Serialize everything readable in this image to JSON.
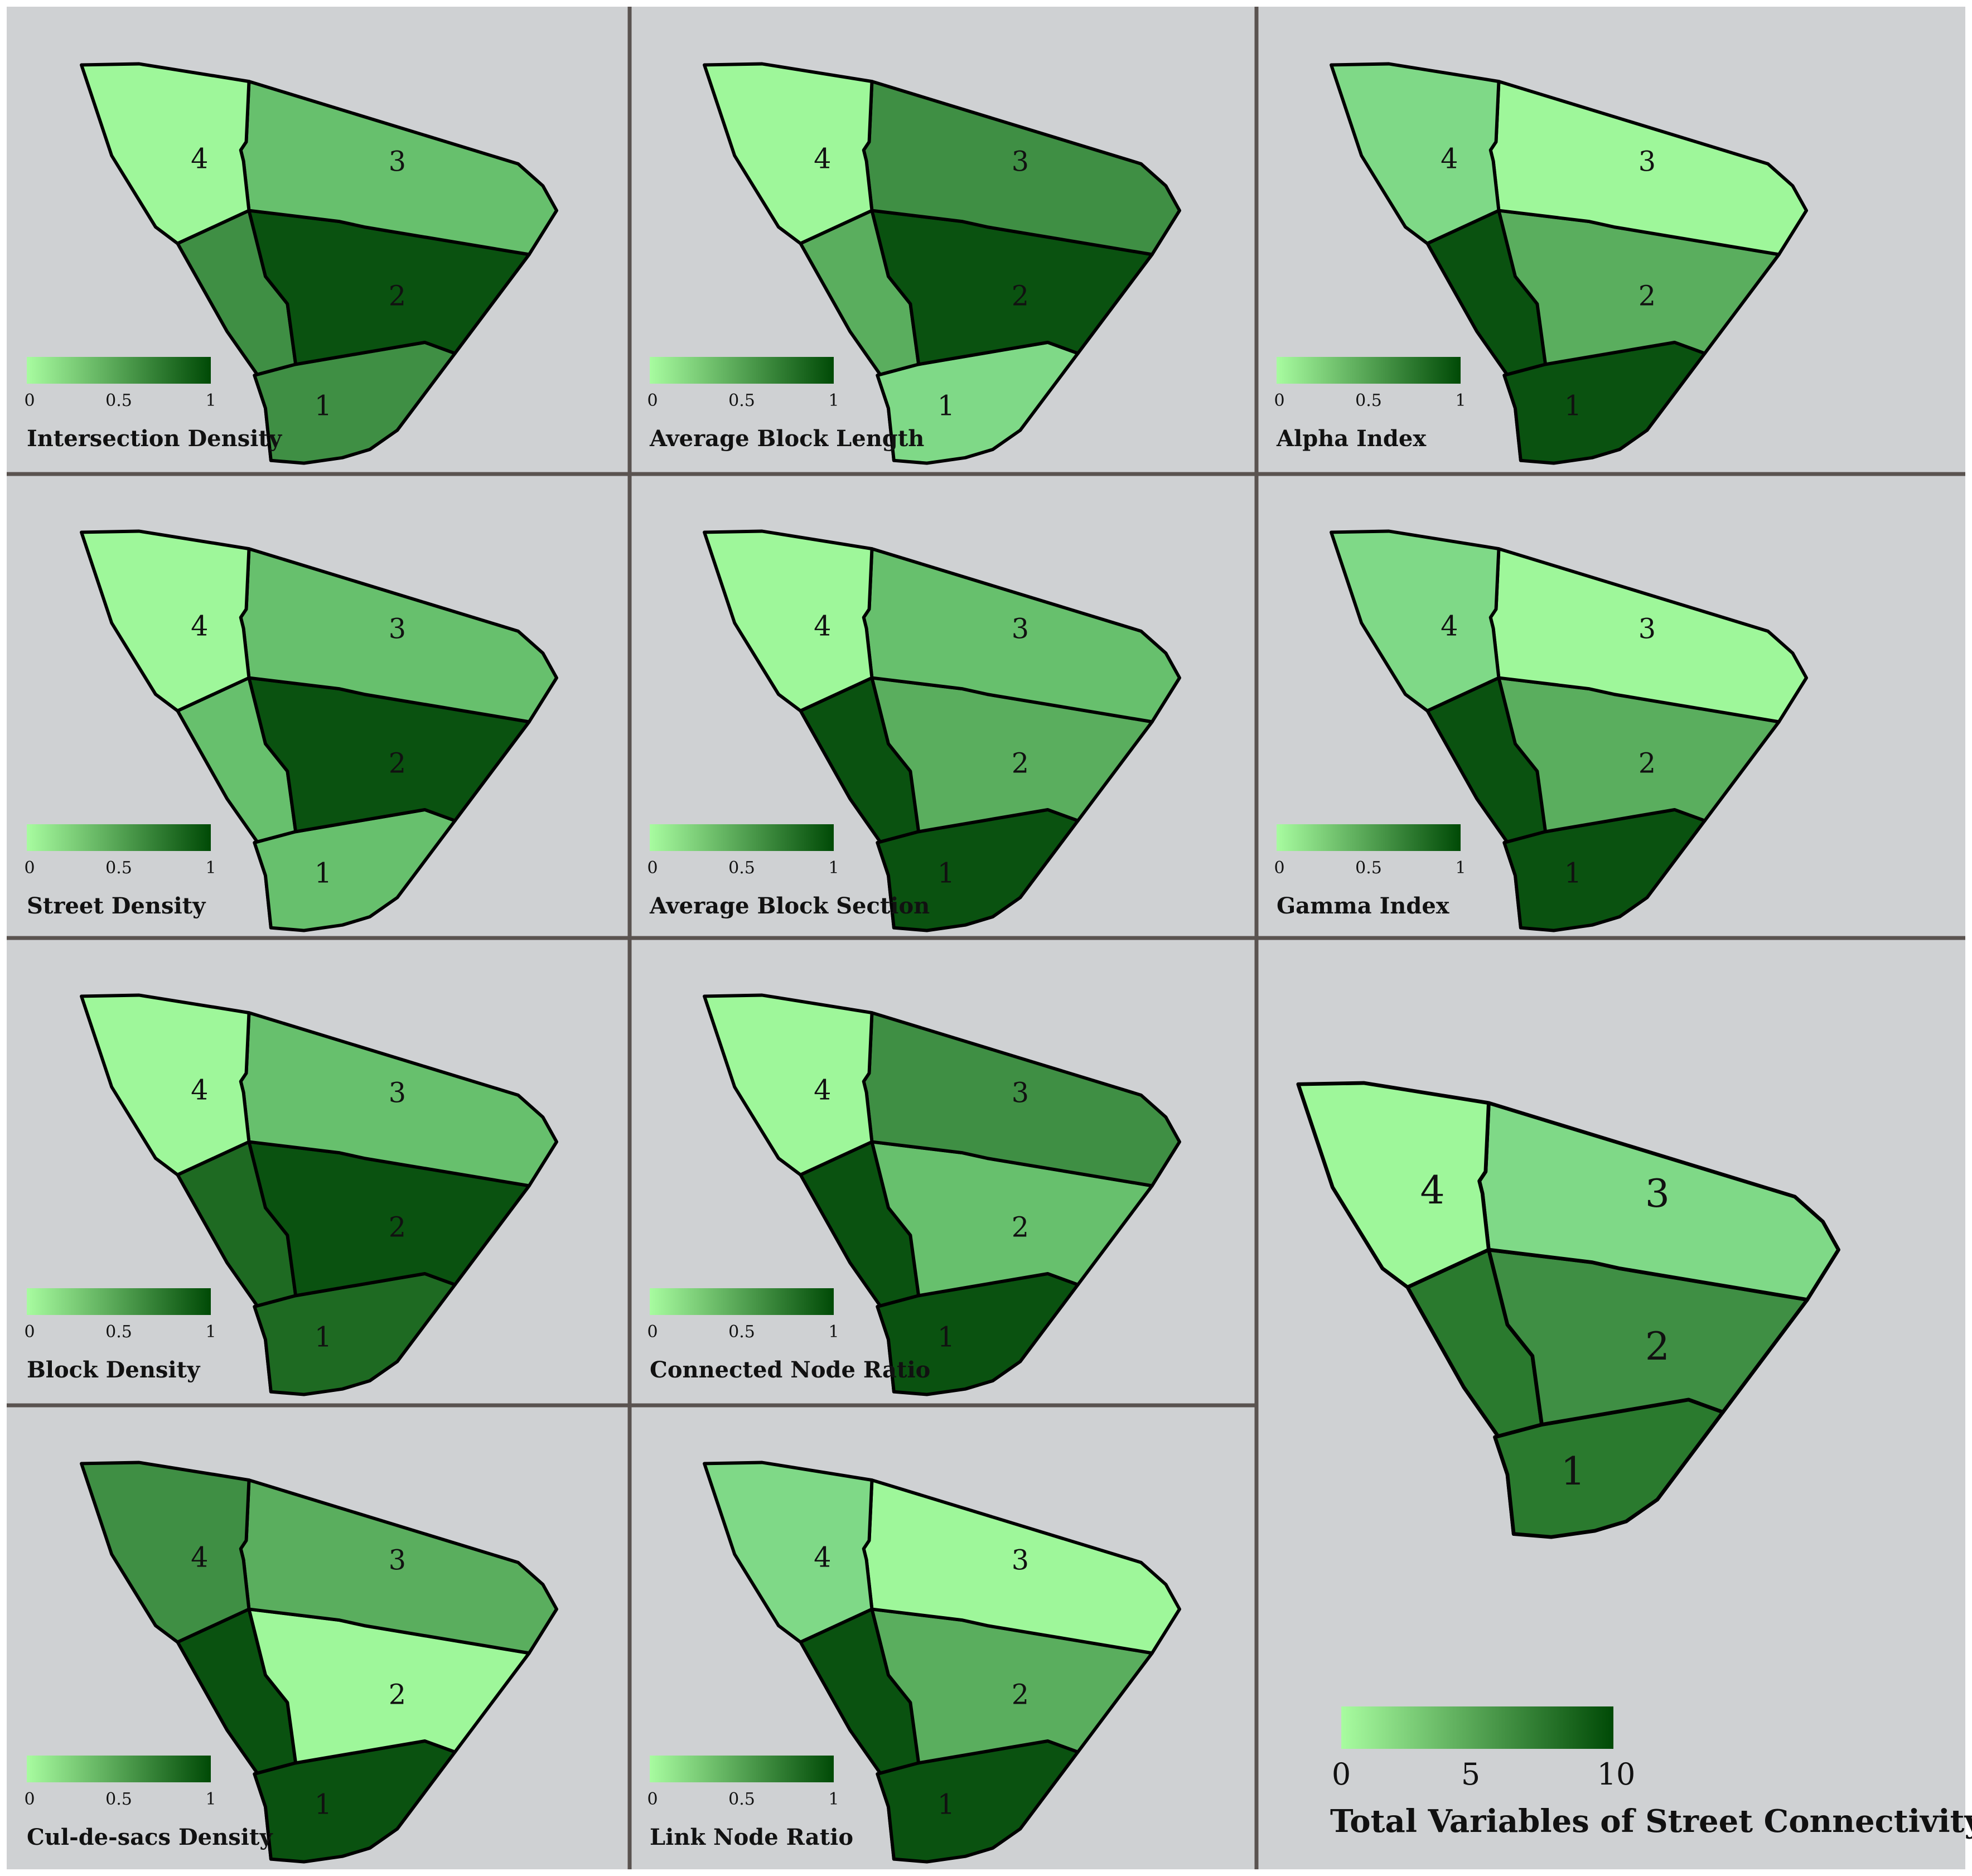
{
  "colors": {
    "panel_background": "#cfd1d3",
    "divider": "#5a5350",
    "legend_low": "#a8fca0",
    "legend_high": "#004a06",
    "shade_scale": [
      "#9ef79a",
      "#7fd987",
      "#67c06d",
      "#5aae5e",
      "#3f8f44",
      "#2a7a2e",
      "#1e6a22",
      "#0a5210"
    ]
  },
  "small_legend": {
    "ticks": [
      "0",
      "0.5",
      "1"
    ]
  },
  "panels": [
    {
      "title": "Intersection Density",
      "zones": [
        {
          "label": "1",
          "color": "#3f8f44"
        },
        {
          "label": "2",
          "color": "#0a5210"
        },
        {
          "label": "3",
          "color": "#67c06d"
        },
        {
          "label": "4",
          "color": "#9ef79a"
        }
      ],
      "extra_zone_color": "#3f8f44"
    },
    {
      "title": "Average Block Length",
      "zones": [
        {
          "label": "1",
          "color": "#7fd987"
        },
        {
          "label": "2",
          "color": "#0a5210"
        },
        {
          "label": "3",
          "color": "#3f8f44"
        },
        {
          "label": "4",
          "color": "#9ef79a"
        }
      ],
      "extra_zone_color": "#5aae5e"
    },
    {
      "title": "Alpha Index",
      "zones": [
        {
          "label": "1",
          "color": "#0a5210"
        },
        {
          "label": "2",
          "color": "#5aae5e"
        },
        {
          "label": "3",
          "color": "#9ef79a"
        },
        {
          "label": "4",
          "color": "#7fd987"
        }
      ],
      "extra_zone_color": "#0a5210"
    },
    {
      "title": "Street Density",
      "zones": [
        {
          "label": "1",
          "color": "#67c06d"
        },
        {
          "label": "2",
          "color": "#0a5210"
        },
        {
          "label": "3",
          "color": "#67c06d"
        },
        {
          "label": "4",
          "color": "#9ef79a"
        }
      ],
      "extra_zone_color": "#67c06d"
    },
    {
      "title": "Average Block Section",
      "zones": [
        {
          "label": "1",
          "color": "#0a5210"
        },
        {
          "label": "2",
          "color": "#5aae5e"
        },
        {
          "label": "3",
          "color": "#67c06d"
        },
        {
          "label": "4",
          "color": "#9ef79a"
        }
      ],
      "extra_zone_color": "#0a5210"
    },
    {
      "title": "Gamma Index",
      "zones": [
        {
          "label": "1",
          "color": "#0a5210"
        },
        {
          "label": "2",
          "color": "#5aae5e"
        },
        {
          "label": "3",
          "color": "#9ef79a"
        },
        {
          "label": "4",
          "color": "#7fd987"
        }
      ],
      "extra_zone_color": "#0a5210"
    },
    {
      "title": "Block Density",
      "zones": [
        {
          "label": "1",
          "color": "#1e6a22"
        },
        {
          "label": "2",
          "color": "#0a5210"
        },
        {
          "label": "3",
          "color": "#67c06d"
        },
        {
          "label": "4",
          "color": "#9ef79a"
        }
      ],
      "extra_zone_color": "#1e6a22"
    },
    {
      "title": "Connected Node Ratio",
      "zones": [
        {
          "label": "1",
          "color": "#0a5210"
        },
        {
          "label": "2",
          "color": "#67c06d"
        },
        {
          "label": "3",
          "color": "#3f8f44"
        },
        {
          "label": "4",
          "color": "#9ef79a"
        }
      ],
      "extra_zone_color": "#0a5210"
    },
    {
      "title": "Cul-de-sacs Density",
      "zones": [
        {
          "label": "1",
          "color": "#0a5210"
        },
        {
          "label": "2",
          "color": "#9ef79a"
        },
        {
          "label": "3",
          "color": "#5aae5e"
        },
        {
          "label": "4",
          "color": "#3f8f44"
        }
      ],
      "extra_zone_color": "#0a5210"
    },
    {
      "title": "Link Node Ratio",
      "zones": [
        {
          "label": "1",
          "color": "#0a5210"
        },
        {
          "label": "2",
          "color": "#5aae5e"
        },
        {
          "label": "3",
          "color": "#9ef79a"
        },
        {
          "label": "4",
          "color": "#7fd987"
        }
      ],
      "extra_zone_color": "#0a5210"
    }
  ],
  "total_panel": {
    "title": "Total Variables of Street Connectivity",
    "legend_ticks": [
      "0",
      "5",
      "10"
    ],
    "zones": [
      {
        "label": "1",
        "color": "#2a7a2e"
      },
      {
        "label": "2",
        "color": "#3f8f44"
      },
      {
        "label": "3",
        "color": "#7fd987"
      },
      {
        "label": "4",
        "color": "#9ef79a"
      }
    ],
    "extra_zone_color": "#2a7a2e"
  }
}
